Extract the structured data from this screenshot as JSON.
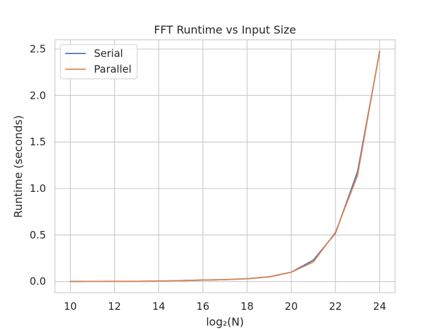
{
  "chart_data": {
    "type": "line",
    "title": "FFT Runtime vs Input Size",
    "xlabel": "log₂(N)",
    "ylabel": "Runtime (seconds)",
    "xlim": [
      9.3,
      24.7
    ],
    "ylim": [
      -0.12,
      2.6
    ],
    "xticks": [
      10,
      12,
      14,
      16,
      18,
      20,
      22,
      24
    ],
    "yticks": [
      0.0,
      0.5,
      1.0,
      1.5,
      2.0,
      2.5
    ],
    "ytick_labels": [
      "0.0",
      "0.5",
      "1.0",
      "1.5",
      "2.0",
      "2.5"
    ],
    "x": [
      10,
      11,
      12,
      13,
      14,
      15,
      16,
      17,
      18,
      19,
      20,
      21,
      22,
      23,
      24
    ],
    "series": [
      {
        "name": "Serial",
        "color": "#4c72b0",
        "values": [
          0.0003,
          0.0006,
          0.0011,
          0.0022,
          0.0045,
          0.0095,
          0.016,
          0.02,
          0.03,
          0.05,
          0.1,
          0.23,
          0.52,
          1.18,
          2.47
        ]
      },
      {
        "name": "Parallel",
        "color": "#dd8452",
        "values": [
          0.0004,
          0.0007,
          0.0013,
          0.0025,
          0.0048,
          0.0095,
          0.016,
          0.02,
          0.03,
          0.05,
          0.1,
          0.21,
          0.53,
          1.14,
          2.48
        ]
      }
    ],
    "grid": true,
    "legend_position": "top-left"
  }
}
